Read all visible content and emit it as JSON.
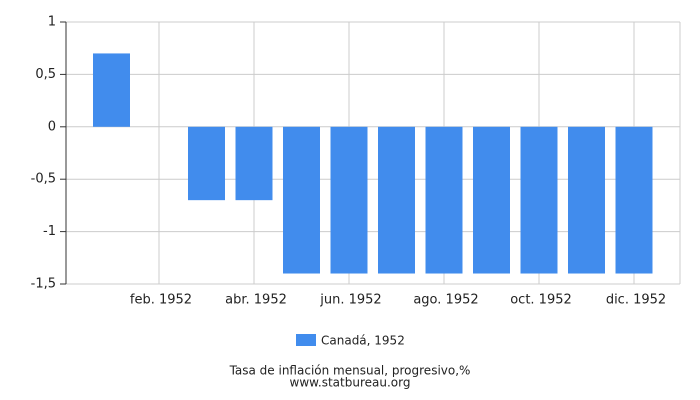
{
  "chart_data": {
    "type": "bar",
    "categories": [
      null,
      "feb. 1952",
      null,
      "abr. 1952",
      null,
      "jun. 1952",
      null,
      "ago. 1952",
      null,
      "oct. 1952",
      null,
      "dic. 1952"
    ],
    "series": [
      {
        "name": "Canadá, 1952",
        "color": "#418ced",
        "values": [
          0.7,
          0,
          -0.7,
          -0.7,
          -1.4,
          -1.4,
          -1.4,
          -1.4,
          -1.4,
          -1.4,
          -1.4,
          -1.4
        ]
      }
    ],
    "ylim": [
      -1.5,
      1
    ],
    "yticks": [
      1,
      {
        "value": 0.5,
        "label": "0,5"
      },
      0,
      {
        "value": -0.5,
        "label": "-0,5"
      },
      -1,
      {
        "value": -1.5,
        "label": "-1,5"
      }
    ],
    "grid": true,
    "legend": "bottom",
    "xlabel": "Tasa de inflación mensual, progresivo,%",
    "source": "www.statbureau.org"
  }
}
